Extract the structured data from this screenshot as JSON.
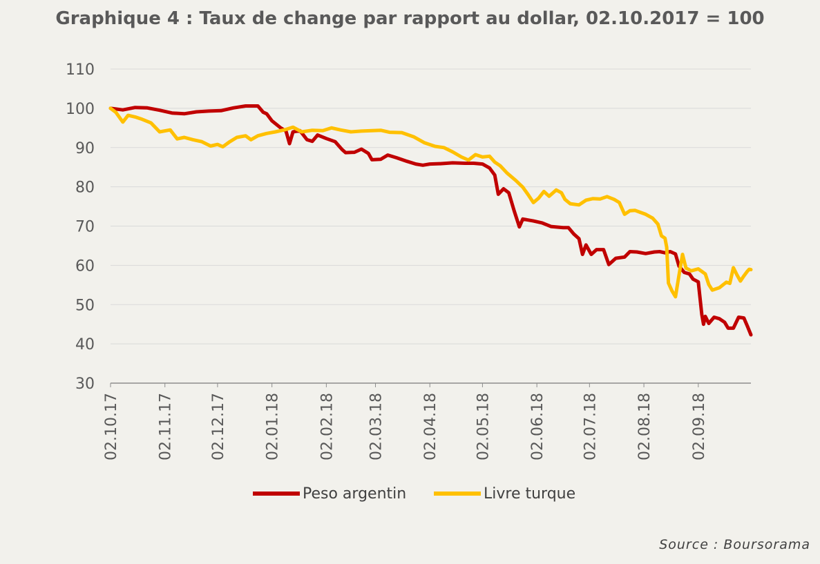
{
  "chart_data": {
    "type": "line",
    "title": "Graphique 4 : Taux de change par rapport au dollar, 02.10.2017 = 100",
    "xlabel": "",
    "ylabel": "",
    "x_start": "02.10.17",
    "x_end": "02.10.18",
    "ylim": [
      30,
      110
    ],
    "y_ticks": [
      30,
      40,
      50,
      60,
      70,
      80,
      90,
      100,
      110
    ],
    "x_ticks": [
      "02.10.17",
      "02.11.17",
      "02.12.17",
      "02.01.18",
      "02.02.18",
      "02.03.18",
      "02.04.18",
      "02.05.18",
      "02.06.18",
      "02.07.18",
      "02.08.18",
      "02.09.18"
    ],
    "grid": "horizontal",
    "legend": "bottom",
    "source": "Source : Boursorama",
    "series": [
      {
        "name": "Peso argentin",
        "color": "#c00000",
        "points": [
          [
            "02.10.17",
            100
          ],
          [
            "09.10.17",
            99.6
          ],
          [
            "16.10.17",
            100.2
          ],
          [
            "23.10.17",
            100.1
          ],
          [
            "30.10.17",
            99.5
          ],
          [
            "06.11.17",
            98.8
          ],
          [
            "13.11.17",
            98.6
          ],
          [
            "20.11.17",
            99.1
          ],
          [
            "27.11.17",
            99.3
          ],
          [
            "04.12.17",
            99.4
          ],
          [
            "11.12.17",
            100.1
          ],
          [
            "18.12.17",
            100.6
          ],
          [
            "25.12.17",
            100.6
          ],
          [
            "28.12.17",
            99.0
          ],
          [
            "30.12.17",
            98.6
          ],
          [
            "02.01.18",
            96.8
          ],
          [
            "07.01.18",
            95.0
          ],
          [
            "10.01.18",
            94.2
          ],
          [
            "12.01.18",
            91.0
          ],
          [
            "14.01.18",
            94.0
          ],
          [
            "18.01.18",
            94.3
          ],
          [
            "22.01.18",
            92.0
          ],
          [
            "25.01.18",
            91.6
          ],
          [
            "28.01.18",
            93.2
          ],
          [
            "02.02.18",
            92.3
          ],
          [
            "07.02.18",
            91.5
          ],
          [
            "11.02.18",
            89.5
          ],
          [
            "13.02.18",
            88.7
          ],
          [
            "18.02.18",
            88.8
          ],
          [
            "22.02.18",
            89.6
          ],
          [
            "26.02.18",
            88.5
          ],
          [
            "28.02.18",
            86.9
          ],
          [
            "05.03.18",
            87.0
          ],
          [
            "09.03.18",
            88.1
          ],
          [
            "14.03.18",
            87.4
          ],
          [
            "20.03.18",
            86.5
          ],
          [
            "25.03.18",
            85.8
          ],
          [
            "29.03.18",
            85.5
          ],
          [
            "02.04.18",
            85.8
          ],
          [
            "08.04.18",
            85.9
          ],
          [
            "15.04.18",
            86.1
          ],
          [
            "22.04.18",
            86.0
          ],
          [
            "27.04.18",
            86.0
          ],
          [
            "02.05.18",
            85.8
          ],
          [
            "06.05.18",
            84.8
          ],
          [
            "09.05.18",
            83.0
          ],
          [
            "11.05.18",
            78.1
          ],
          [
            "14.05.18",
            79.5
          ],
          [
            "17.05.18",
            78.5
          ],
          [
            "20.05.18",
            74.0
          ],
          [
            "23.05.18",
            69.8
          ],
          [
            "25.05.18",
            71.8
          ],
          [
            "31.05.18",
            71.3
          ],
          [
            "05.06.18",
            70.8
          ],
          [
            "10.06.18",
            69.9
          ],
          [
            "17.06.18",
            69.6
          ],
          [
            "20.06.18",
            69.6
          ],
          [
            "23.06.18",
            68.0
          ],
          [
            "26.06.18",
            66.8
          ],
          [
            "28.06.18",
            62.8
          ],
          [
            "30.06.18",
            65.2
          ],
          [
            "03.07.18",
            62.8
          ],
          [
            "06.07.18",
            64.0
          ],
          [
            "10.07.18",
            64.0
          ],
          [
            "12.07.18",
            61.5
          ],
          [
            "13.07.18",
            60.2
          ],
          [
            "17.07.18",
            61.8
          ],
          [
            "22.07.18",
            62.1
          ],
          [
            "25.07.18",
            63.5
          ],
          [
            "29.07.18",
            63.4
          ],
          [
            "03.08.18",
            63.0
          ],
          [
            "08.08.18",
            63.4
          ],
          [
            "11.08.18",
            63.5
          ],
          [
            "14.08.18",
            63.2
          ],
          [
            "17.08.18",
            63.5
          ],
          [
            "20.08.18",
            62.9
          ],
          [
            "22.08.18",
            59.8
          ],
          [
            "25.08.18",
            58.2
          ],
          [
            "28.08.18",
            57.8
          ],
          [
            "30.08.18",
            56.5
          ],
          [
            "02.09.18",
            55.8
          ],
          [
            "04.09.18",
            47.5
          ],
          [
            "05.09.18",
            45.0
          ],
          [
            "06.09.18",
            47.0
          ],
          [
            "08.09.18",
            45.2
          ],
          [
            "11.09.18",
            46.8
          ],
          [
            "14.09.18",
            46.4
          ],
          [
            "17.09.18",
            45.5
          ],
          [
            "19.09.18",
            44.0
          ],
          [
            "22.09.18",
            44.0
          ],
          [
            "25.09.18",
            46.8
          ],
          [
            "28.09.18",
            46.6
          ],
          [
            "30.09.18",
            44.5
          ],
          [
            "02.10.18",
            42.3
          ]
        ]
      },
      {
        "name": "Livre turque",
        "color": "#ffc000",
        "points": [
          [
            "02.10.17",
            100
          ],
          [
            "05.10.17",
            99.0
          ],
          [
            "09.10.17",
            96.5
          ],
          [
            "12.10.17",
            98.2
          ],
          [
            "16.10.17",
            97.8
          ],
          [
            "20.10.17",
            97.2
          ],
          [
            "25.10.17",
            96.3
          ],
          [
            "30.10.17",
            94.0
          ],
          [
            "05.11.17",
            94.5
          ],
          [
            "09.11.17",
            92.2
          ],
          [
            "13.11.17",
            92.6
          ],
          [
            "18.11.17",
            92.0
          ],
          [
            "23.11.17",
            91.5
          ],
          [
            "28.11.17",
            90.4
          ],
          [
            "02.12.17",
            90.8
          ],
          [
            "05.12.17",
            90.2
          ],
          [
            "09.12.17",
            91.5
          ],
          [
            "13.12.17",
            92.6
          ],
          [
            "18.12.17",
            93.0
          ],
          [
            "21.12.17",
            92.0
          ],
          [
            "25.12.17",
            93.0
          ],
          [
            "30.12.17",
            93.6
          ],
          [
            "04.01.18",
            94.0
          ],
          [
            "09.01.18",
            94.5
          ],
          [
            "14.01.18",
            95.2
          ],
          [
            "19.01.18",
            94.0
          ],
          [
            "25.01.18",
            94.4
          ],
          [
            "31.01.18",
            94.3
          ],
          [
            "05.02.18",
            95.0
          ],
          [
            "10.02.18",
            94.5
          ],
          [
            "16.02.18",
            94.0
          ],
          [
            "22.02.18",
            94.2
          ],
          [
            "28.02.18",
            94.3
          ],
          [
            "05.03.18",
            94.4
          ],
          [
            "10.03.18",
            93.9
          ],
          [
            "17.03.18",
            93.8
          ],
          [
            "24.03.18",
            92.7
          ],
          [
            "30.03.18",
            91.2
          ],
          [
            "05.04.18",
            90.3
          ],
          [
            "10.04.18",
            90.0
          ],
          [
            "15.04.18",
            88.9
          ],
          [
            "20.04.18",
            87.6
          ],
          [
            "24.04.18",
            86.8
          ],
          [
            "28.04.18",
            88.2
          ],
          [
            "02.05.18",
            87.6
          ],
          [
            "06.05.18",
            87.8
          ],
          [
            "09.05.18",
            86.3
          ],
          [
            "12.05.18",
            85.4
          ],
          [
            "16.05.18",
            83.5
          ],
          [
            "21.05.18",
            81.6
          ],
          [
            "25.05.18",
            79.9
          ],
          [
            "28.05.18",
            78.0
          ],
          [
            "31.05.18",
            76.0
          ],
          [
            "03.06.18",
            77.1
          ],
          [
            "06.06.18",
            78.8
          ],
          [
            "09.06.18",
            77.6
          ],
          [
            "13.06.18",
            79.2
          ],
          [
            "16.06.18",
            78.5
          ],
          [
            "18.06.18",
            76.8
          ],
          [
            "21.06.18",
            75.7
          ],
          [
            "26.06.18",
            75.4
          ],
          [
            "30.06.18",
            76.6
          ],
          [
            "04.07.18",
            77.0
          ],
          [
            "08.07.18",
            76.9
          ],
          [
            "12.07.18",
            77.5
          ],
          [
            "16.07.18",
            76.8
          ],
          [
            "19.07.18",
            76.0
          ],
          [
            "22.07.18",
            73.0
          ],
          [
            "25.07.18",
            73.9
          ],
          [
            "28.07.18",
            74.0
          ],
          [
            "31.07.18",
            73.5
          ],
          [
            "03.08.18",
            73.0
          ],
          [
            "07.08.18",
            72.0
          ],
          [
            "10.08.18",
            70.5
          ],
          [
            "12.08.18",
            67.5
          ],
          [
            "14.08.18",
            66.9
          ],
          [
            "15.08.18",
            64.6
          ],
          [
            "16.08.18",
            55.5
          ],
          [
            "18.08.18",
            53.5
          ],
          [
            "20.08.18",
            52.0
          ],
          [
            "22.08.18",
            57.5
          ],
          [
            "24.08.18",
            62.8
          ],
          [
            "26.08.18",
            59.3
          ],
          [
            "29.08.18",
            58.6
          ],
          [
            "02.09.18",
            59.1
          ],
          [
            "06.09.18",
            57.8
          ],
          [
            "08.09.18",
            55.1
          ],
          [
            "10.09.18",
            53.7
          ],
          [
            "14.09.18",
            54.3
          ],
          [
            "18.09.18",
            55.7
          ],
          [
            "20.09.18",
            55.4
          ],
          [
            "22.09.18",
            59.4
          ],
          [
            "24.09.18",
            57.6
          ],
          [
            "26.09.18",
            56.0
          ],
          [
            "28.09.18",
            57.3
          ],
          [
            "30.09.18",
            58.5
          ],
          [
            "01.10.18",
            59.0
          ],
          [
            "02.10.18",
            58.9
          ]
        ]
      }
    ]
  }
}
